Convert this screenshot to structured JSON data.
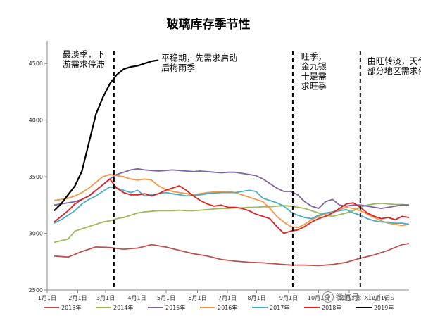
{
  "chart_data": {
    "type": "line",
    "title": "玻璃库存季节性",
    "xlabel": "",
    "ylabel": "",
    "ylim": [
      2500,
      4700
    ],
    "yticks": [
      2500,
      3000,
      3500,
      4000,
      4500
    ],
    "xlim": [
      1,
      53
    ],
    "x_ticks": [
      {
        "week": 1,
        "label": "1月1日"
      },
      {
        "week": 5.4,
        "label": "2月1日"
      },
      {
        "week": 9.4,
        "label": "3月1日"
      },
      {
        "week": 13.9,
        "label": "4月1日"
      },
      {
        "week": 18.1,
        "label": "5月1日"
      },
      {
        "week": 22.6,
        "label": "6月1日"
      },
      {
        "week": 26.9,
        "label": "7月1日"
      },
      {
        "week": 31.1,
        "label": "8月1日"
      },
      {
        "week": 35.7,
        "label": "9月1日"
      },
      {
        "week": 40.0,
        "label": "10月1日"
      },
      {
        "week": 44.4,
        "label": "11月1日"
      },
      {
        "week": 48.7,
        "label": "12月1日"
      }
    ],
    "grid": false,
    "legend_position": "bottom",
    "series": [
      {
        "name": "2013年",
        "color": "#c0504d",
        "x": [
          2,
          4,
          6,
          8,
          10,
          12,
          14,
          16,
          18,
          20,
          22,
          24,
          26,
          28,
          30,
          32,
          34,
          36,
          38,
          40,
          42,
          44,
          46,
          48,
          50,
          52,
          53
        ],
        "y": [
          2800,
          2790,
          2840,
          2880,
          2875,
          2860,
          2870,
          2900,
          2880,
          2850,
          2820,
          2800,
          2770,
          2755,
          2745,
          2740,
          2730,
          2720,
          2720,
          2715,
          2725,
          2745,
          2780,
          2810,
          2850,
          2900,
          2910
        ]
      },
      {
        "name": "2014年",
        "color": "#9bbb59",
        "x": [
          2,
          3,
          4,
          5,
          6,
          7,
          8,
          9,
          10,
          11,
          12,
          13,
          14,
          15,
          16,
          17,
          18,
          19,
          20,
          21,
          22,
          23,
          24,
          25,
          26,
          27,
          28,
          29,
          30,
          31,
          32,
          33,
          34,
          35,
          36,
          37,
          38,
          39,
          40,
          41,
          42,
          43,
          44,
          45,
          46,
          47,
          48,
          49,
          50,
          51,
          52,
          53
        ],
        "y": [
          2920,
          2935,
          2950,
          3020,
          3040,
          3060,
          3080,
          3100,
          3110,
          3130,
          3140,
          3160,
          3180,
          3190,
          3195,
          3200,
          3200,
          3200,
          3205,
          3200,
          3200,
          3205,
          3210,
          3215,
          3220,
          3220,
          3225,
          3225,
          3230,
          3230,
          3235,
          3235,
          3240,
          3245,
          3240,
          3230,
          3220,
          3200,
          3180,
          3160,
          3150,
          3165,
          3180,
          3200,
          3230,
          3250,
          3260,
          3265,
          3260,
          3255,
          3255,
          3250
        ]
      },
      {
        "name": "2015年",
        "color": "#8064a2",
        "x": [
          2,
          3,
          4,
          5,
          6,
          7,
          8,
          9,
          10,
          11,
          12,
          13,
          14,
          15,
          16,
          17,
          18,
          19,
          20,
          21,
          22,
          23,
          24,
          25,
          26,
          27,
          28,
          29,
          30,
          31,
          32,
          33,
          34,
          35,
          36,
          37,
          38,
          39,
          40,
          41,
          42,
          43,
          44,
          45,
          46,
          47,
          48,
          49,
          50,
          51,
          52,
          53
        ],
        "y": [
          3250,
          3260,
          3270,
          3280,
          3300,
          3330,
          3380,
          3430,
          3480,
          3520,
          3540,
          3560,
          3570,
          3560,
          3555,
          3550,
          3555,
          3560,
          3555,
          3550,
          3545,
          3550,
          3545,
          3540,
          3535,
          3540,
          3540,
          3530,
          3520,
          3510,
          3480,
          3440,
          3400,
          3370,
          3370,
          3340,
          3280,
          3240,
          3220,
          3280,
          3300,
          3250,
          3240,
          3250,
          3250,
          3240,
          3230,
          3220,
          3230,
          3240,
          3250,
          3250
        ]
      },
      {
        "name": "2016年",
        "color": "#f79646",
        "x": [
          2,
          3,
          4,
          5,
          6,
          7,
          8,
          9,
          10,
          11,
          12,
          13,
          14,
          15,
          16,
          17,
          18,
          19,
          20,
          21,
          22,
          23,
          24,
          25,
          26,
          27,
          28,
          29,
          30,
          31,
          32,
          33,
          34,
          35,
          36,
          37,
          38,
          39,
          40,
          41,
          42,
          43,
          44,
          45,
          46,
          47,
          48,
          49,
          50,
          51,
          52,
          53
        ],
        "y": [
          3290,
          3300,
          3310,
          3330,
          3360,
          3400,
          3450,
          3500,
          3520,
          3510,
          3500,
          3480,
          3470,
          3480,
          3470,
          3420,
          3390,
          3370,
          3360,
          3350,
          3340,
          3350,
          3360,
          3365,
          3370,
          3370,
          3360,
          3340,
          3320,
          3300,
          3280,
          3220,
          3150,
          3100,
          3060,
          3050,
          3080,
          3120,
          3150,
          3170,
          3190,
          3210,
          3230,
          3220,
          3200,
          3170,
          3140,
          3110,
          3090,
          3080,
          3070,
          3080
        ]
      },
      {
        "name": "2017年",
        "color": "#4bacc6",
        "x": [
          2,
          3,
          4,
          5,
          6,
          7,
          8,
          9,
          10,
          11,
          12,
          13,
          14,
          15,
          16,
          17,
          18,
          19,
          20,
          21,
          22,
          23,
          24,
          25,
          26,
          27,
          28,
          29,
          30,
          31,
          32,
          33,
          34,
          35,
          36,
          37,
          38,
          39,
          40,
          41,
          42,
          43,
          44,
          45,
          46,
          47,
          48,
          49,
          50,
          51,
          52,
          53
        ],
        "y": [
          3090,
          3120,
          3160,
          3200,
          3260,
          3300,
          3330,
          3370,
          3410,
          3400,
          3380,
          3360,
          3380,
          3330,
          3340,
          3350,
          3360,
          3350,
          3340,
          3330,
          3335,
          3340,
          3350,
          3355,
          3360,
          3360,
          3360,
          3370,
          3380,
          3370,
          3310,
          3290,
          3270,
          3240,
          3190,
          3160,
          3140,
          3130,
          3160,
          3180,
          3190,
          3200,
          3210,
          3180,
          3160,
          3130,
          3110,
          3100,
          3100,
          3090,
          3090,
          3080
        ]
      },
      {
        "name": "2018年",
        "color": "#e02020",
        "x": [
          2,
          3,
          4,
          5,
          6,
          7,
          8,
          9,
          10,
          11,
          12,
          13,
          14,
          15,
          16,
          17,
          18,
          19,
          20,
          21,
          22,
          23,
          24,
          25,
          26,
          27,
          28,
          29,
          30,
          31,
          32,
          33,
          34,
          35,
          36,
          37,
          38,
          39,
          40,
          41,
          42,
          43,
          44,
          45,
          46,
          47,
          48,
          49,
          50,
          51,
          52,
          53
        ],
        "y": [
          3100,
          3150,
          3200,
          3260,
          3300,
          3330,
          3380,
          3430,
          3480,
          3400,
          3360,
          3340,
          3340,
          3350,
          3330,
          3350,
          3380,
          3400,
          3420,
          3380,
          3330,
          3290,
          3260,
          3240,
          3250,
          3230,
          3230,
          3220,
          3200,
          3170,
          3150,
          3130,
          3060,
          3000,
          3020,
          3030,
          3060,
          3100,
          3130,
          3150,
          3180,
          3220,
          3260,
          3270,
          3230,
          3180,
          3150,
          3130,
          3140,
          3120,
          3150,
          3140
        ]
      },
      {
        "name": "2019年",
        "color": "#000000",
        "x": [
          2,
          3,
          4,
          5,
          6,
          7,
          8,
          9,
          10,
          11,
          12,
          13,
          14,
          15,
          16,
          17
        ],
        "y": [
          3200,
          3260,
          3340,
          3420,
          3550,
          3800,
          4050,
          4200,
          4320,
          4400,
          4450,
          4470,
          4480,
          4500,
          4520,
          4530
        ]
      }
    ],
    "annotations": [
      {
        "text": [
          "最淡季，下",
          "游需求停滞"
        ],
        "week": 3.2,
        "y": 4380
      },
      {
        "text": [
          "平稳期，先需求启动",
          "后梅雨季"
        ],
        "week": 17.4,
        "y": 4350
      },
      {
        "text": [
          "旺季，",
          "金九银",
          "十是需",
          "求旺季"
        ],
        "week": 37.5,
        "y": 4360
      },
      {
        "text": [
          "由旺转淡，天气转冷，",
          "部分地区需求停滞"
        ],
        "week": 47.0,
        "y": 4320
      }
    ],
    "vlines": [
      10.6,
      36.3,
      46.0
    ]
  },
  "watermark": {
    "label": "微信号: xhqhyjs"
  }
}
